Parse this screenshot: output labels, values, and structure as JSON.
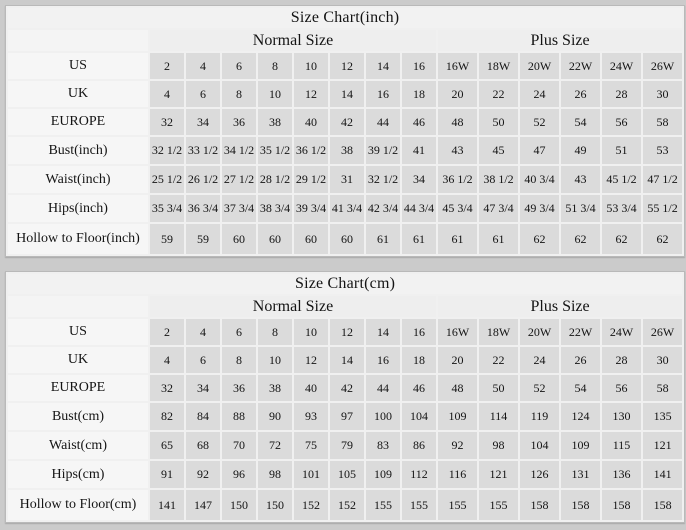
{
  "page": {
    "background": "#cbcbcb",
    "cell_color": "#dbdbdb",
    "label_color": "#f6f6f6",
    "separator_color": "#f0f0f0"
  },
  "chart_data": [
    {
      "type": "table",
      "title": "Size Chart(inch)",
      "column_groups": [
        {
          "label": "Normal Size",
          "span": 8
        },
        {
          "label": "Plus Size",
          "span": 6
        }
      ],
      "rows": [
        {
          "label": "US",
          "values": [
            "2",
            "4",
            "6",
            "8",
            "10",
            "12",
            "14",
            "16",
            "16W",
            "18W",
            "20W",
            "22W",
            "24W",
            "26W"
          ]
        },
        {
          "label": "UK",
          "values": [
            "4",
            "6",
            "8",
            "10",
            "12",
            "14",
            "16",
            "18",
            "20",
            "22",
            "24",
            "26",
            "28",
            "30"
          ]
        },
        {
          "label": "EUROPE",
          "values": [
            "32",
            "34",
            "36",
            "38",
            "40",
            "42",
            "44",
            "46",
            "48",
            "50",
            "52",
            "54",
            "56",
            "58"
          ]
        },
        {
          "label": "Bust(inch)",
          "values": [
            "32 1/2",
            "33 1/2",
            "34 1/2",
            "35 1/2",
            "36 1/2",
            "38",
            "39 1/2",
            "41",
            "43",
            "45",
            "47",
            "49",
            "51",
            "53"
          ]
        },
        {
          "label": "Waist(inch)",
          "values": [
            "25 1/2",
            "26 1/2",
            "27 1/2",
            "28 1/2",
            "29 1/2",
            "31",
            "32 1/2",
            "34",
            "36 1/2",
            "38 1/2",
            "40 3/4",
            "43",
            "45 1/2",
            "47 1/2"
          ]
        },
        {
          "label": "Hips(inch)",
          "values": [
            "35 3/4",
            "36 3/4",
            "37 3/4",
            "38 3/4",
            "39 3/4",
            "41 3/4",
            "42 3/4",
            "44 3/4",
            "45 3/4",
            "47 3/4",
            "49 3/4",
            "51 3/4",
            "53 3/4",
            "55 1/2"
          ]
        },
        {
          "label": "Hollow to Floor(inch)",
          "values": [
            "59",
            "59",
            "60",
            "60",
            "60",
            "60",
            "61",
            "61",
            "61",
            "61",
            "62",
            "62",
            "62",
            "62"
          ]
        }
      ]
    },
    {
      "type": "table",
      "title": "Size Chart(cm)",
      "column_groups": [
        {
          "label": "Normal Size",
          "span": 8
        },
        {
          "label": "Plus Size",
          "span": 6
        }
      ],
      "rows": [
        {
          "label": "US",
          "values": [
            "2",
            "4",
            "6",
            "8",
            "10",
            "12",
            "14",
            "16",
            "16W",
            "18W",
            "20W",
            "22W",
            "24W",
            "26W"
          ]
        },
        {
          "label": "UK",
          "values": [
            "4",
            "6",
            "8",
            "10",
            "12",
            "14",
            "16",
            "18",
            "20",
            "22",
            "24",
            "26",
            "28",
            "30"
          ]
        },
        {
          "label": "EUROPE",
          "values": [
            "32",
            "34",
            "36",
            "38",
            "40",
            "42",
            "44",
            "46",
            "48",
            "50",
            "52",
            "54",
            "56",
            "58"
          ]
        },
        {
          "label": "Bust(cm)",
          "values": [
            "82",
            "84",
            "88",
            "90",
            "93",
            "97",
            "100",
            "104",
            "109",
            "114",
            "119",
            "124",
            "130",
            "135"
          ]
        },
        {
          "label": "Waist(cm)",
          "values": [
            "65",
            "68",
            "70",
            "72",
            "75",
            "79",
            "83",
            "86",
            "92",
            "98",
            "104",
            "109",
            "115",
            "121"
          ]
        },
        {
          "label": "Hips(cm)",
          "values": [
            "91",
            "92",
            "96",
            "98",
            "101",
            "105",
            "109",
            "112",
            "116",
            "121",
            "126",
            "131",
            "136",
            "141"
          ]
        },
        {
          "label": "Hollow to Floor(cm)",
          "values": [
            "141",
            "147",
            "150",
            "150",
            "152",
            "152",
            "155",
            "155",
            "155",
            "155",
            "158",
            "158",
            "158",
            "158"
          ]
        }
      ]
    }
  ]
}
